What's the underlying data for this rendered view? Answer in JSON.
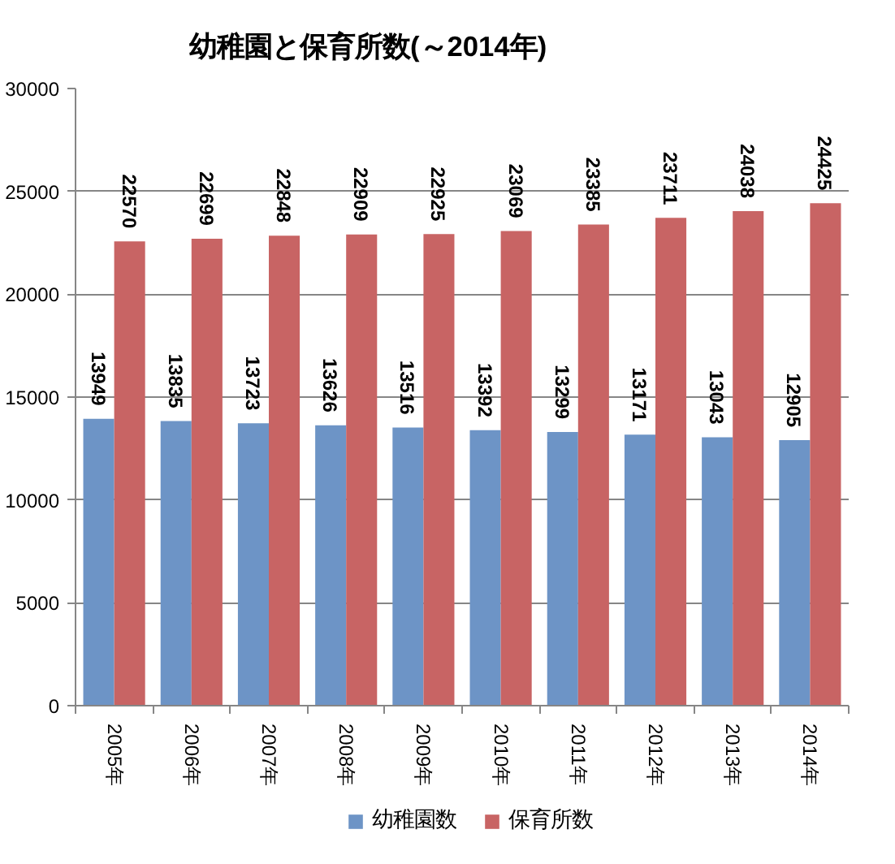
{
  "chart_data": {
    "type": "bar",
    "title": "幼稚園と保育所数(～2014年)",
    "categories": [
      "2005年",
      "2006年",
      "2007年",
      "2008年",
      "2009年",
      "2010年",
      "2011年",
      "2012年",
      "2013年",
      "2014年"
    ],
    "series": [
      {
        "name": "幼稚園数",
        "color": "#6d94c6",
        "values": [
          13949,
          13835,
          13723,
          13626,
          13516,
          13392,
          13299,
          13171,
          13043,
          12905
        ]
      },
      {
        "name": "保育所数",
        "color": "#c86464",
        "values": [
          22570,
          22699,
          22848,
          22909,
          22925,
          23069,
          23385,
          23711,
          24038,
          24425
        ]
      }
    ],
    "ylim": [
      0,
      30000
    ],
    "yticks": [
      0,
      5000,
      10000,
      15000,
      20000,
      25000,
      30000
    ],
    "grid": "y",
    "legend": "bottom",
    "data_labels": true
  }
}
